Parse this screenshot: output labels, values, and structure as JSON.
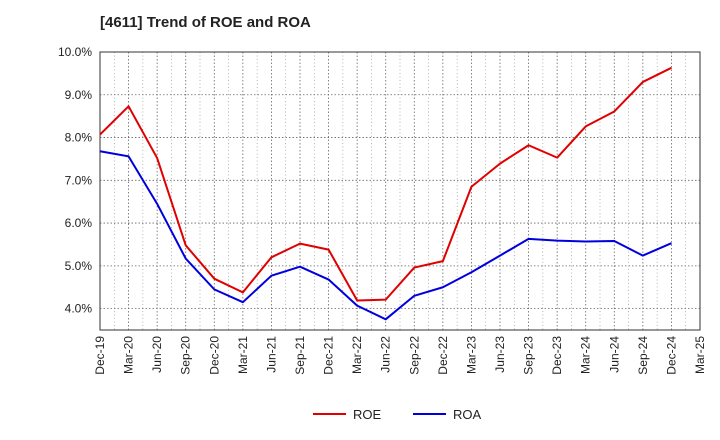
{
  "chart_data": {
    "type": "line",
    "title": "[4611]  Trend of ROE and ROA",
    "xlabel": "",
    "ylabel": "",
    "categories": [
      "Dec-19",
      "Mar-20",
      "Jun-20",
      "Sep-20",
      "Dec-20",
      "Mar-21",
      "Jun-21",
      "Sep-21",
      "Dec-21",
      "Mar-22",
      "Jun-22",
      "Sep-22",
      "Dec-22",
      "Mar-23",
      "Jun-23",
      "Sep-23",
      "Dec-23",
      "Mar-24",
      "Jun-24",
      "Sep-24",
      "Dec-24",
      "Mar-25"
    ],
    "ylim": [
      3.5,
      10.0
    ],
    "yticks": [
      4.0,
      5.0,
      6.0,
      7.0,
      8.0,
      9.0,
      10.0
    ],
    "ytick_labels": [
      "4.0%",
      "5.0%",
      "6.0%",
      "7.0%",
      "8.0%",
      "9.0%",
      "10.0%"
    ],
    "grid": true,
    "legend_position": "bottom",
    "series": [
      {
        "name": "ROE",
        "color": "#e00000",
        "values": [
          8.07,
          8.73,
          7.52,
          5.48,
          4.7,
          4.38,
          5.2,
          5.52,
          5.38,
          4.19,
          4.21,
          4.96,
          5.11,
          6.85,
          7.39,
          7.82,
          7.53,
          8.26,
          8.61,
          9.3,
          9.63,
          null
        ]
      },
      {
        "name": "ROA",
        "color": "#0000dd",
        "values": [
          7.68,
          7.56,
          6.45,
          5.17,
          4.45,
          4.15,
          4.77,
          4.98,
          4.68,
          4.07,
          3.75,
          4.3,
          4.5,
          4.85,
          5.24,
          5.63,
          5.59,
          5.57,
          5.58,
          5.24,
          5.53,
          null
        ]
      }
    ]
  }
}
